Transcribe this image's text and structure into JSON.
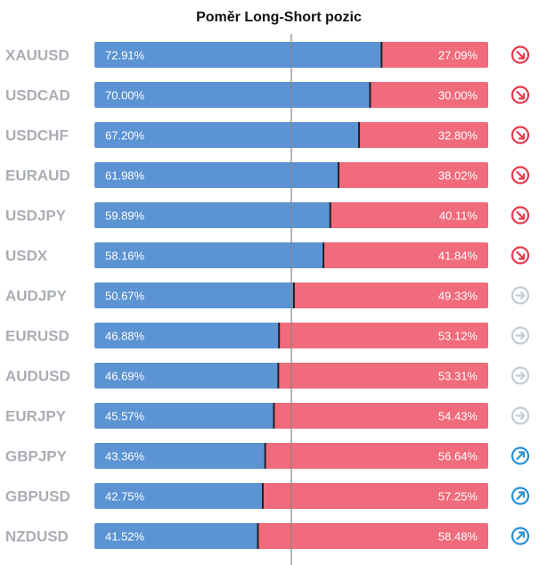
{
  "title": "Poměr Long-Short pozic",
  "chart_data": {
    "type": "bar",
    "stacked": "percent",
    "orientation": "horizontal",
    "categories": [
      "XAUUSD",
      "USDCAD",
      "USDCHF",
      "EURAUD",
      "USDJPY",
      "USDX",
      "AUDJPY",
      "EURUSD",
      "AUDUSD",
      "EURJPY",
      "GBPJPY",
      "GBPUSD",
      "NZDUSD"
    ],
    "series": [
      {
        "values": [
          72.91,
          70.0,
          67.2,
          61.98,
          59.89,
          58.16,
          50.67,
          46.88,
          46.69,
          45.57,
          43.36,
          42.75,
          41.52
        ]
      },
      {
        "values": [
          27.09,
          30.0,
          32.8,
          38.02,
          40.11,
          41.84,
          49.33,
          53.12,
          53.31,
          54.43,
          56.64,
          57.25,
          58.48
        ]
      }
    ],
    "series_labels": {
      "long": [
        "72.91%",
        "70.00%",
        "67.20%",
        "61.98%",
        "59.89%",
        "58.16%",
        "50.67%",
        "46.88%",
        "46.69%",
        "45.57%",
        "43.36%",
        "42.75%",
        "41.52%"
      ],
      "short": [
        "27.09%",
        "30.00%",
        "32.80%",
        "38.02%",
        "40.11%",
        "41.84%",
        "49.33%",
        "53.12%",
        "53.31%",
        "54.43%",
        "56.64%",
        "57.25%",
        "58.48%"
      ]
    },
    "signals": [
      "down",
      "down",
      "down",
      "down",
      "down",
      "down",
      "neutral",
      "neutral",
      "neutral",
      "neutral",
      "up",
      "up",
      "up"
    ],
    "xlim": [
      0,
      100
    ],
    "reference_line": 50,
    "colors": {
      "long": "#5b93d3",
      "short": "#f06b7b",
      "divider": "#222222",
      "center_line": "#888888",
      "symbol_text": "#a9aeb5",
      "signal_down": "#e8394d",
      "signal_neutral": "#c3ccd6",
      "signal_up": "#2b8fd8"
    },
    "icons": {
      "down": "arrow-down-right-icon",
      "neutral": "arrow-right-icon",
      "up": "arrow-up-right-icon"
    }
  }
}
